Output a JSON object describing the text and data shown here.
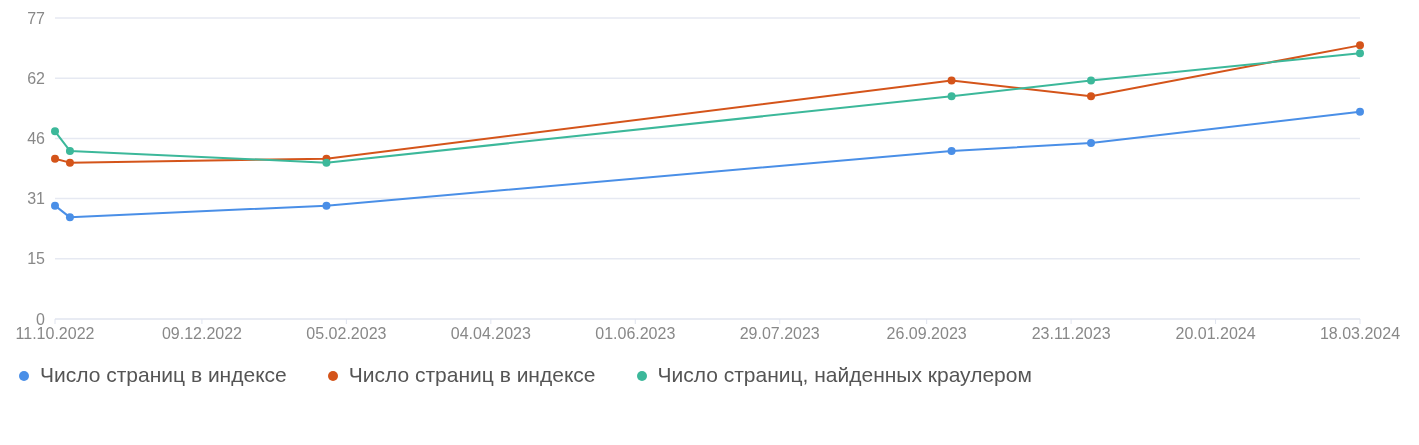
{
  "chart_data": {
    "type": "line",
    "x": [
      "2022-10-11",
      "2022-10-17",
      "2023-01-28",
      "2023-10-06",
      "2023-12-01",
      "2024-03-18"
    ],
    "series": [
      {
        "name": "Число страниц в индексе",
        "color": "#4a8fe7",
        "values": [
          29,
          26,
          29,
          43,
          45,
          53
        ]
      },
      {
        "name": "Число страниц в индексе",
        "color": "#d4541a",
        "values": [
          41,
          40,
          41,
          61,
          57,
          70
        ]
      },
      {
        "name": "Число страниц, найденных краулером",
        "color": "#3cb89a",
        "values": [
          48,
          43,
          40,
          57,
          61,
          68
        ]
      }
    ],
    "xlim": [
      "2022-10-11",
      "2024-03-18"
    ],
    "xticks": [
      {
        "value": "2022-10-11",
        "label": "11.10.2022"
      },
      {
        "value": "2022-12-09",
        "label": "09.12.2022"
      },
      {
        "value": "2023-02-05",
        "label": "05.02.2023"
      },
      {
        "value": "2023-04-04",
        "label": "04.04.2023"
      },
      {
        "value": "2023-06-01",
        "label": "01.06.2023"
      },
      {
        "value": "2023-07-29",
        "label": "29.07.2023"
      },
      {
        "value": "2023-09-26",
        "label": "26.09.2023"
      },
      {
        "value": "2023-11-23",
        "label": "23.11.2023"
      },
      {
        "value": "2024-01-20",
        "label": "20.01.2024"
      },
      {
        "value": "2024-03-18",
        "label": "18.03.2024"
      }
    ],
    "ylim": [
      0,
      77
    ],
    "yticks": [
      0,
      {
        "value": 15.4,
        "label": "15"
      },
      {
        "value": 30.8,
        "label": "31"
      },
      {
        "value": 46.2,
        "label": "46"
      },
      {
        "value": 61.6,
        "label": "62"
      },
      77
    ],
    "grid": "y",
    "legend": "bottom",
    "marker": "circle",
    "line_style": "solid"
  }
}
